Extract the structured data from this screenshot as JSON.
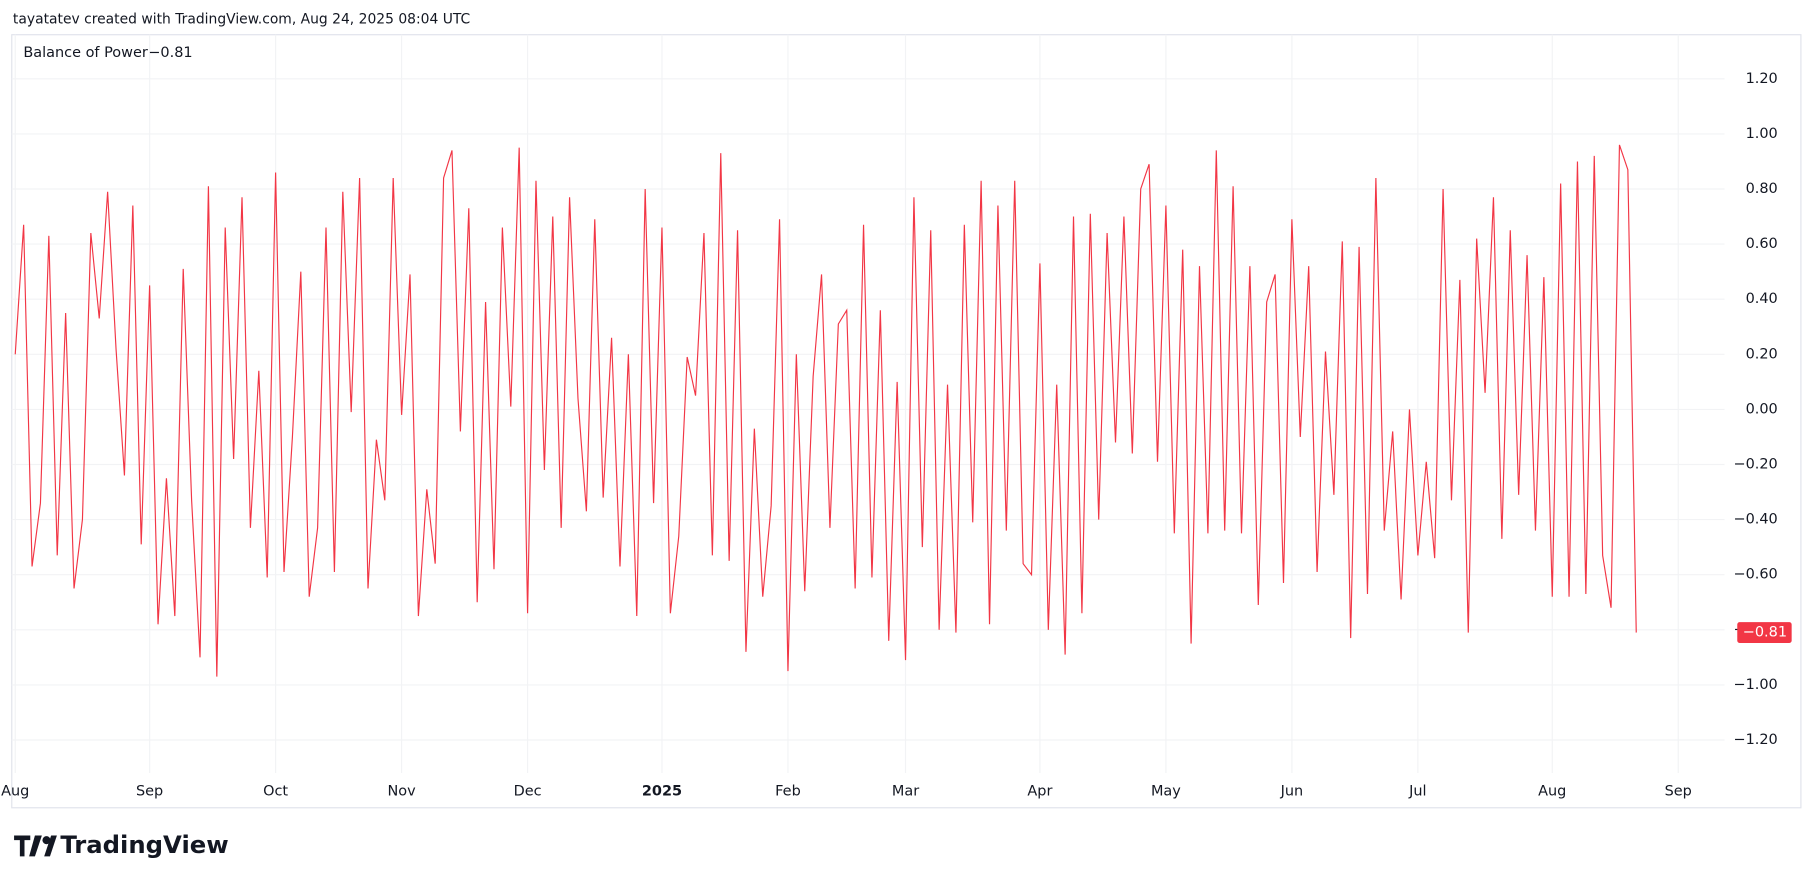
{
  "header": {
    "text": "tayatatev created with TradingView.com, Aug 24, 2025 08:04 UTC"
  },
  "footer": {
    "logo": "TradingView"
  },
  "chart_data": {
    "type": "line",
    "categories": [
      "Aug",
      null,
      null,
      null,
      null,
      null,
      null,
      null,
      null,
      null,
      null,
      null,
      null,
      null,
      null,
      null,
      "Sep",
      null,
      null,
      null,
      null,
      null,
      null,
      null,
      null,
      null,
      null,
      null,
      null,
      null,
      null,
      "Oct",
      null,
      null,
      null,
      null,
      null,
      null,
      null,
      null,
      null,
      null,
      null,
      null,
      null,
      null,
      "Nov",
      null,
      null,
      null,
      null,
      null,
      null,
      null,
      null,
      null,
      null,
      null,
      null,
      null,
      null,
      "Dec",
      null,
      null,
      null,
      null,
      null,
      null,
      null,
      null,
      null,
      null,
      null,
      null,
      null,
      null,
      null,
      "2025",
      null,
      null,
      null,
      null,
      null,
      null,
      null,
      null,
      null,
      null,
      null,
      null,
      null,
      null,
      "Feb",
      null,
      null,
      null,
      null,
      null,
      null,
      null,
      null,
      null,
      null,
      null,
      null,
      null,
      "Mar",
      null,
      null,
      null,
      null,
      null,
      null,
      null,
      null,
      null,
      null,
      null,
      null,
      null,
      null,
      null,
      "Apr",
      null,
      null,
      null,
      null,
      null,
      null,
      null,
      null,
      null,
      null,
      null,
      null,
      null,
      null,
      "May",
      null,
      null,
      null,
      null,
      null,
      null,
      null,
      null,
      null,
      null,
      null,
      null,
      null,
      null,
      "Jun",
      null,
      null,
      null,
      null,
      null,
      null,
      null,
      null,
      null,
      null,
      null,
      null,
      null,
      null,
      "Jul",
      null,
      null,
      null,
      null,
      null,
      null,
      null,
      null,
      null,
      null,
      null,
      null,
      null,
      null,
      null,
      "Aug",
      null,
      null,
      null,
      null,
      null,
      null,
      null,
      null,
      null,
      null,
      null,
      null,
      null,
      null,
      "Sep"
    ],
    "series": [
      {
        "name": "Balance of Power",
        "color": "#f23645",
        "last_value_label": "−0.81",
        "values": [
          0.2,
          0.67,
          -0.57,
          -0.34,
          0.63,
          -0.53,
          0.35,
          -0.65,
          -0.4,
          0.64,
          0.33,
          0.79,
          0.22,
          -0.24,
          0.74,
          -0.49,
          0.45,
          -0.78,
          -0.25,
          -0.75,
          0.51,
          -0.33,
          -0.9,
          0.81,
          -0.97,
          0.66,
          -0.18,
          0.77,
          -0.43,
          0.14,
          -0.61,
          0.86,
          -0.59,
          -0.1,
          0.5,
          -0.68,
          -0.43,
          0.66,
          -0.59,
          0.79,
          -0.01,
          0.84,
          -0.65,
          -0.11,
          -0.33,
          0.84,
          -0.02,
          0.49,
          -0.75,
          -0.29,
          -0.56,
          0.84,
          0.94,
          -0.08,
          0.73,
          -0.7,
          0.39,
          -0.58,
          0.66,
          0.01,
          0.95,
          -0.74,
          0.83,
          -0.22,
          0.7,
          -0.43,
          0.77,
          0.04,
          -0.37,
          0.69,
          -0.32,
          0.26,
          -0.57,
          0.2,
          -0.75,
          0.8,
          -0.34,
          0.66,
          -0.74,
          -0.46,
          0.19,
          0.05,
          0.64,
          -0.53,
          0.93,
          -0.55,
          0.65,
          -0.88,
          -0.07,
          -0.68,
          -0.35,
          0.69,
          -0.95,
          0.2,
          -0.66,
          0.12,
          0.49,
          -0.43,
          0.31,
          0.36,
          -0.65,
          0.67,
          -0.61,
          0.36,
          -0.84,
          0.1,
          -0.91,
          0.77,
          -0.5,
          0.65,
          -0.8,
          0.09,
          -0.81,
          0.67,
          -0.41,
          0.83,
          -0.78,
          0.74,
          -0.44,
          0.83,
          -0.56,
          -0.6,
          0.53,
          -0.8,
          0.09,
          -0.89,
          0.7,
          -0.74,
          0.71,
          -0.4,
          0.64,
          -0.12,
          0.7,
          -0.16,
          0.8,
          0.89,
          -0.19,
          0.74,
          -0.45,
          0.58,
          -0.85,
          0.52,
          -0.45,
          0.94,
          -0.44,
          0.81,
          -0.45,
          0.52,
          -0.71,
          0.39,
          0.49,
          -0.63,
          0.69,
          -0.1,
          0.52,
          -0.59,
          0.21,
          -0.31,
          0.61,
          -0.83,
          0.59,
          -0.67,
          0.84,
          -0.44,
          -0.08,
          -0.69,
          0.0,
          -0.53,
          -0.19,
          -0.54,
          0.8,
          -0.33,
          0.47,
          -0.81,
          0.62,
          0.06,
          0.77,
          -0.47,
          0.65,
          -0.31,
          0.56,
          -0.44,
          0.48,
          -0.68,
          0.82,
          -0.68,
          0.9,
          -0.67,
          0.92,
          -0.53,
          -0.72,
          0.96,
          0.87,
          -0.81,
          null,
          null,
          null,
          null,
          null
        ]
      }
    ],
    "ylim": [
      -1.32,
      1.36
    ],
    "yticks": [
      {
        "value": -1.2,
        "label": "−1.20"
      },
      {
        "value": -1.0,
        "label": "−1.00"
      },
      {
        "value": -0.8,
        "label": "−0.80"
      },
      {
        "value": -0.6,
        "label": "−0.60"
      },
      {
        "value": -0.4,
        "label": "−0.40"
      },
      {
        "value": -0.2,
        "label": "−0.20"
      },
      {
        "value": 0.0,
        "label": "0.00"
      },
      {
        "value": 0.2,
        "label": "0.20"
      },
      {
        "value": 0.4,
        "label": "0.40"
      },
      {
        "value": 0.6,
        "label": "0.60"
      },
      {
        "value": 0.8,
        "label": "0.80"
      },
      {
        "value": 1.0,
        "label": "1.00"
      },
      {
        "value": 1.2,
        "label": "1.20"
      }
    ],
    "grid": true
  }
}
